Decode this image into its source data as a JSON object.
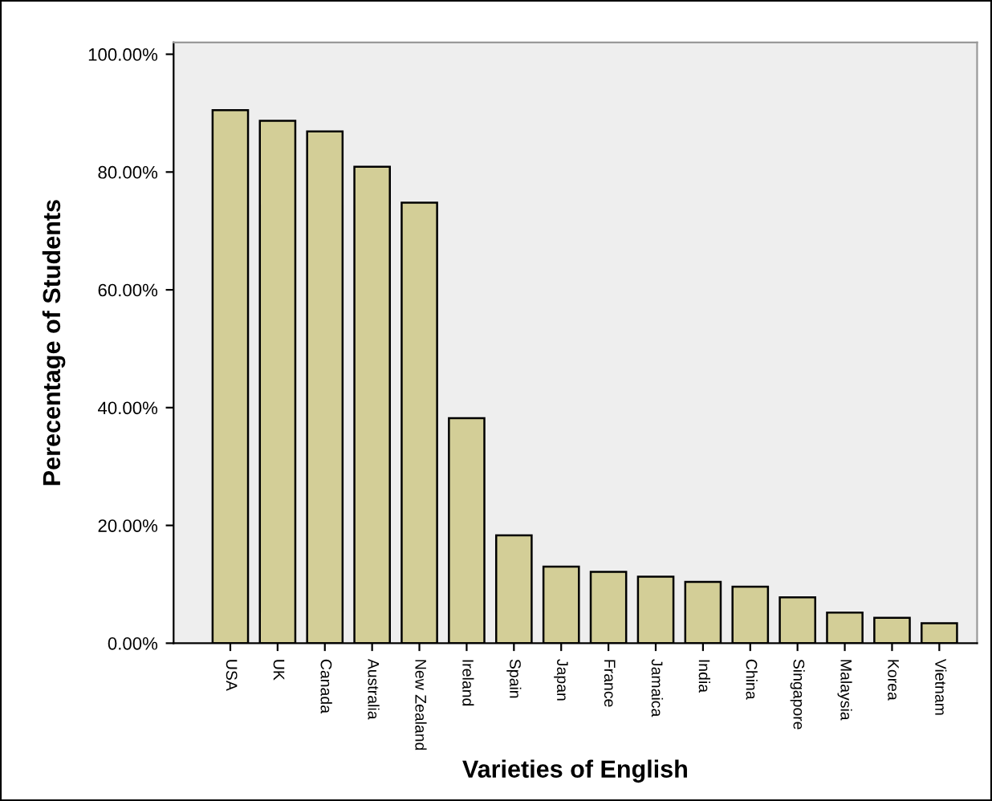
{
  "chart_data": {
    "type": "bar",
    "xlabel": "Varieties of English",
    "ylabel": "Perecentage of Students",
    "categories": [
      "USA",
      "UK",
      "Canada",
      "Australia",
      "New Zealand",
      "Ireland",
      "Spain",
      "Japan",
      "France",
      "Jamaica",
      "India",
      "China",
      "Singapore",
      "Malaysia",
      "Korea",
      "Vietnam"
    ],
    "values": [
      90.5,
      88.7,
      86.9,
      80.9,
      74.8,
      38.2,
      18.3,
      13.0,
      12.1,
      11.3,
      10.4,
      9.6,
      7.8,
      5.2,
      4.3,
      3.4
    ],
    "color": "#d3ce97",
    "ylim": [
      0,
      102
    ],
    "yticks": [
      {
        "value": 0,
        "label": "0.00%"
      },
      {
        "value": 20,
        "label": "20.00%"
      },
      {
        "value": 40,
        "label": "40.00%"
      },
      {
        "value": 60,
        "label": "60.00%"
      },
      {
        "value": 80,
        "label": "80.00%"
      },
      {
        "value": 100,
        "label": "100.00%"
      }
    ],
    "grid": false
  }
}
